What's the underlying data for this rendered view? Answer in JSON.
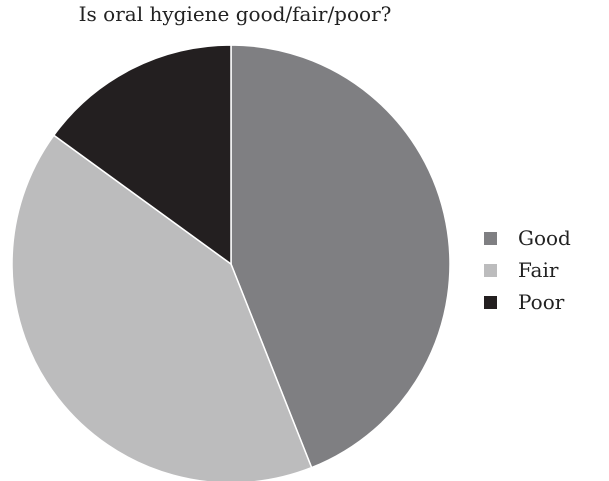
{
  "chart_data": {
    "type": "pie",
    "title": "Is oral hygiene good/fair/poor?",
    "categories": [
      "Good",
      "Fair",
      "Poor"
    ],
    "values": [
      44,
      41,
      15
    ],
    "colors": [
      "#7f7f82",
      "#bcbcbd",
      "#231f20"
    ],
    "stroke_color": "#ffffff",
    "start_angle": "12 o'clock",
    "direction": "clockwise",
    "legend_position": "right"
  }
}
